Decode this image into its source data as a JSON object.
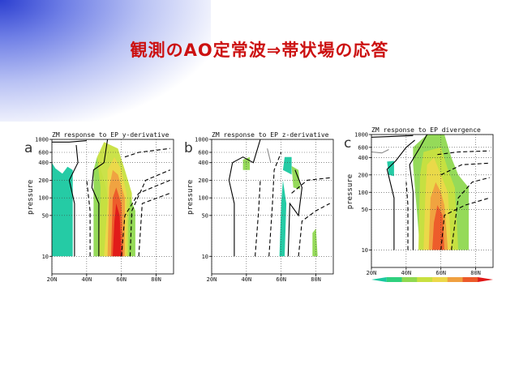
{
  "slide": {
    "title": "観測のAO定常波⇒帯状場の応答"
  },
  "chart_data": [
    {
      "type": "heatmap",
      "panel_label": "a",
      "title": "ZM response to EP y-derivative",
      "ylabel": "pressure",
      "xlabel": "",
      "x_ticks": [
        "20N",
        "40N",
        "60N",
        "80N"
      ],
      "y_ticks": [
        10,
        50,
        100,
        200,
        400,
        600,
        1000
      ],
      "xlim": [
        20,
        90
      ],
      "ylim": [
        1000,
        5
      ],
      "y_scale": "log",
      "grid": true
    },
    {
      "type": "heatmap",
      "panel_label": "b",
      "title": "ZM response to EP z-derivative",
      "ylabel": "pressure",
      "xlabel": "",
      "x_ticks": [
        "20N",
        "40N",
        "60N",
        "80N"
      ],
      "y_ticks": [
        10,
        50,
        100,
        200,
        400,
        600,
        1000
      ],
      "xlim": [
        20,
        90
      ],
      "ylim": [
        1000,
        5
      ],
      "y_scale": "log",
      "grid": true
    },
    {
      "type": "heatmap",
      "panel_label": "c",
      "title": "ZM response to EP divergence",
      "ylabel": "pressure",
      "xlabel": "",
      "x_ticks": [
        "20N",
        "40N",
        "60N",
        "80N"
      ],
      "y_ticks": [
        10,
        50,
        100,
        200,
        400,
        600,
        1000
      ],
      "xlim": [
        20,
        90
      ],
      "ylim": [
        1000,
        5
      ],
      "y_scale": "log",
      "grid": true,
      "colorbar": {
        "colors": [
          "#19c8a0",
          "#2fd07e",
          "#8fd850",
          "#c8e040",
          "#ecd84a",
          "#f0a040",
          "#ec5a2a",
          "#e01818"
        ]
      }
    }
  ]
}
